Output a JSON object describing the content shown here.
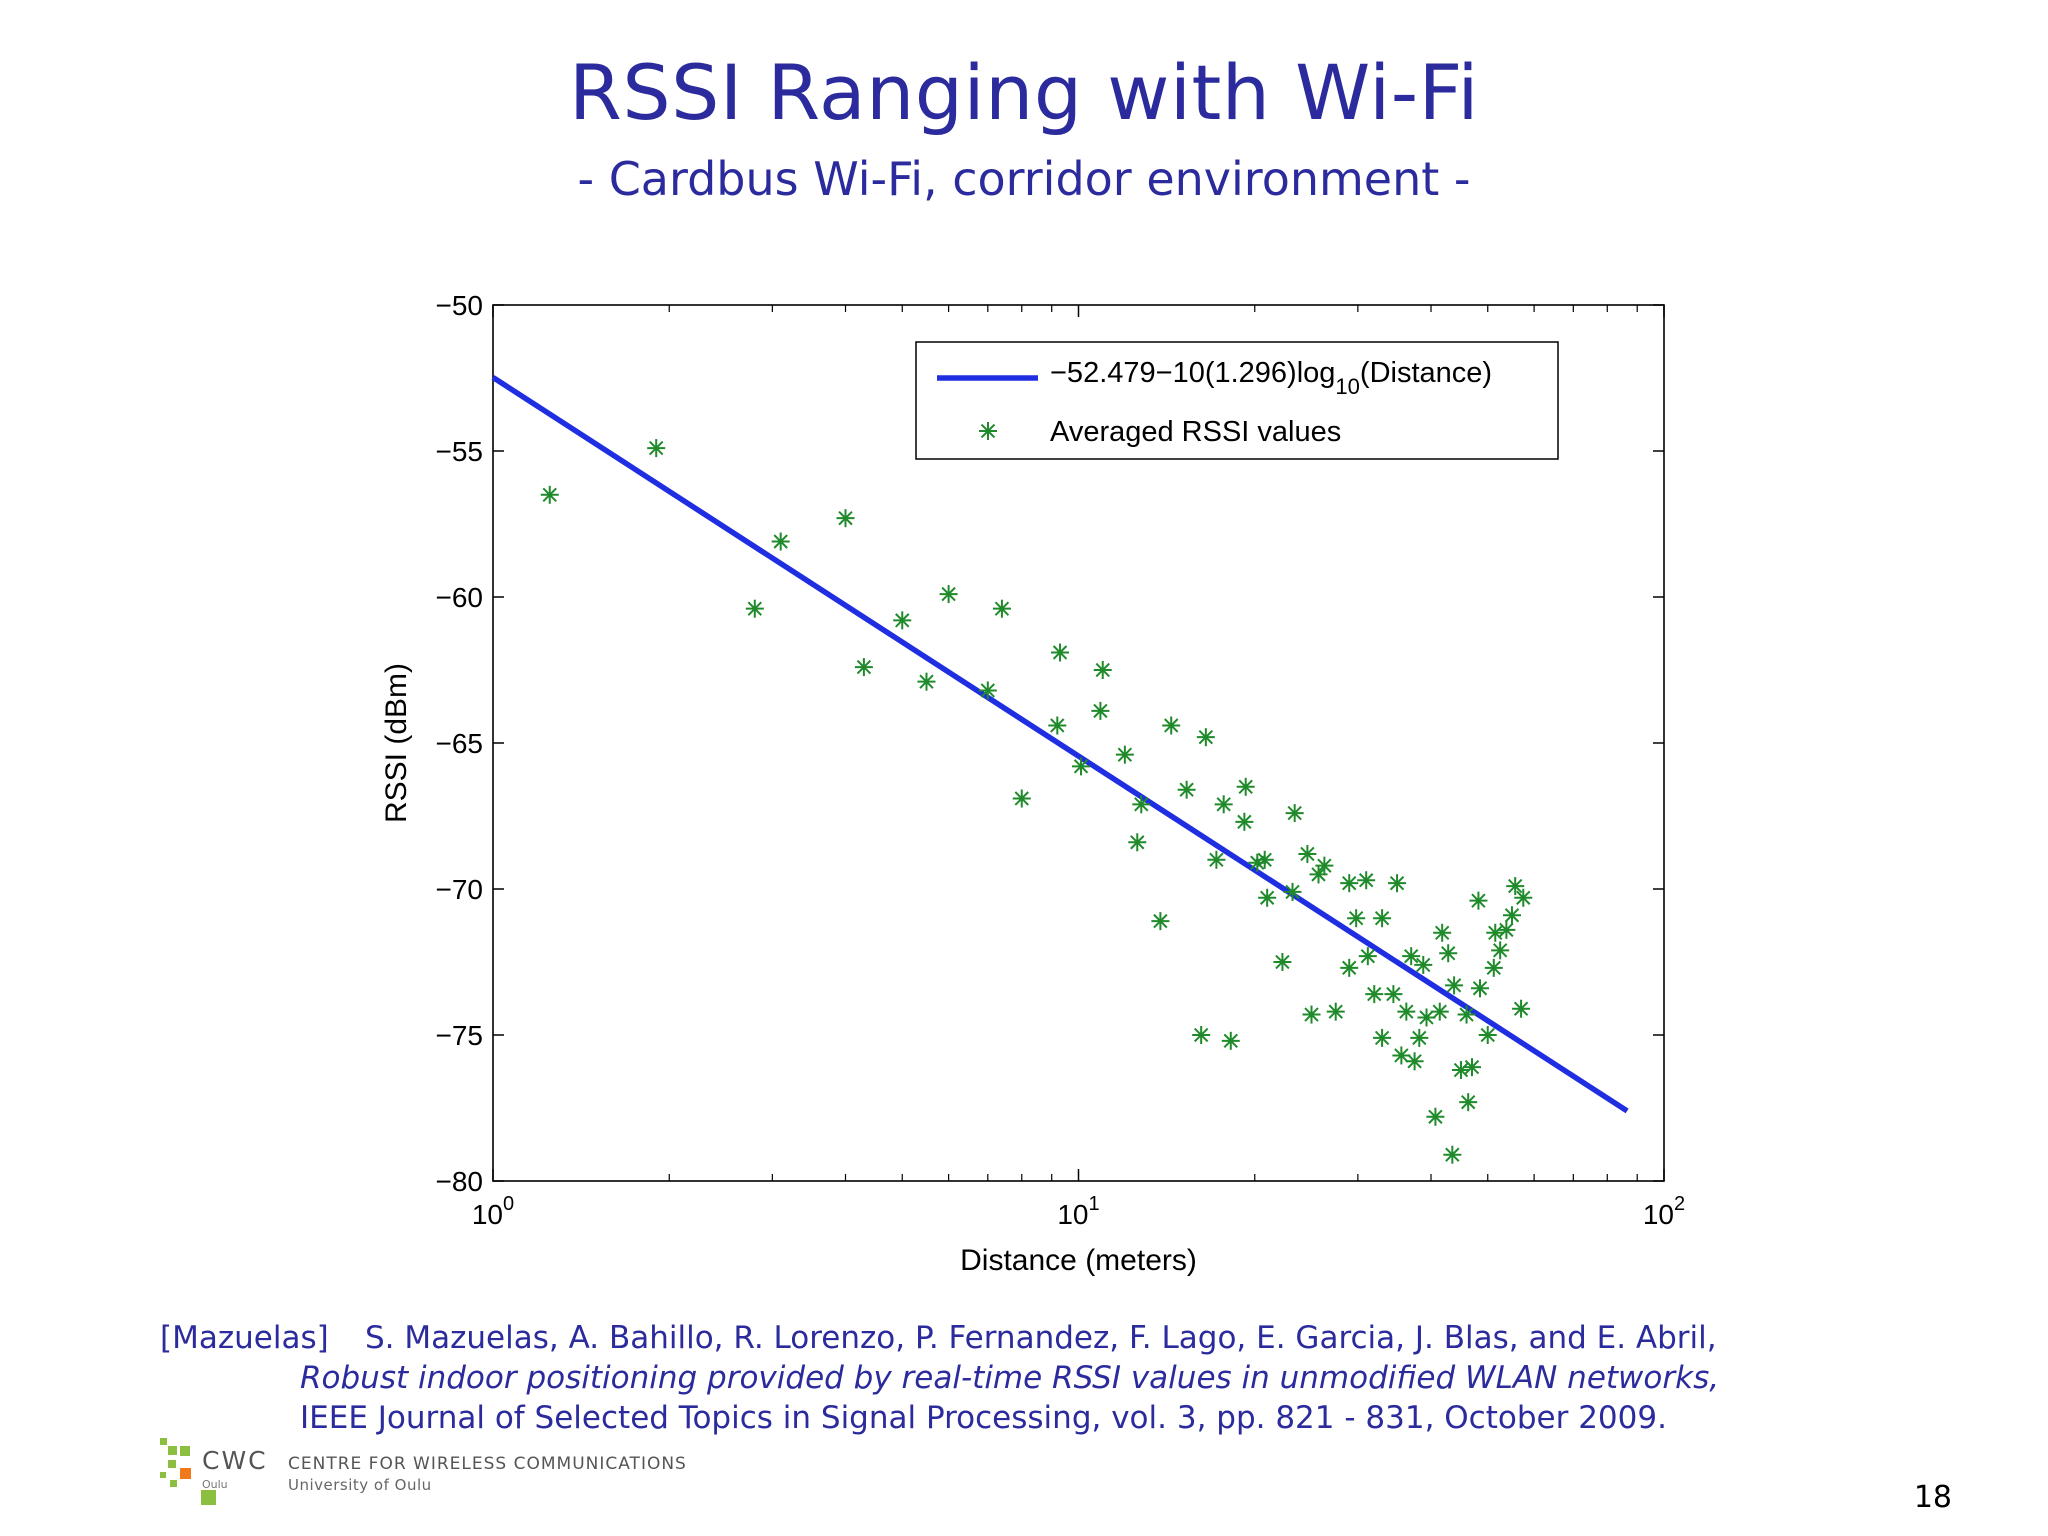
{
  "slide": {
    "title": "RSSI Ranging with Wi-Fi",
    "subtitle": "- Cardbus Wi-Fi, corridor environment -",
    "page_number": "18"
  },
  "reference": {
    "tag": "[Mazuelas]",
    "authors": "S. Mazuelas, A. Bahillo, R. Lorenzo, P. Fernandez, F. Lago, E. Garcia, J. Blas, and E. Abril,",
    "paper_title": "Robust indoor positioning provided by real-time RSSI values in unmodified WLAN networks,",
    "venue": "IEEE Journal of Selected Topics in Signal Processing, vol. 3, pp. 821 - 831, October 2009."
  },
  "logo": {
    "abbr": "CWC",
    "city": "Oulu",
    "centre": "CENTRE FOR WIRELESS COMMUNICATIONS",
    "university": "University of Oulu"
  },
  "chart_data": {
    "type": "scatter",
    "xlabel": "Distance (meters)",
    "ylabel": "RSSI (dBm)",
    "xscale": "log",
    "xlim": [
      1,
      100
    ],
    "ylim": [
      -80,
      -50
    ],
    "xticks": [
      1,
      10,
      100
    ],
    "xtick_labels": [
      {
        "base": "10",
        "exp": "0"
      },
      {
        "base": "10",
        "exp": "1"
      },
      {
        "base": "10",
        "exp": "2"
      }
    ],
    "yticks": [
      -80,
      -75,
      -70,
      -65,
      -60,
      -55,
      -50
    ],
    "ytick_labels": [
      "−80",
      "−75",
      "−70",
      "−65",
      "−60",
      "−55",
      "−50"
    ],
    "grid": false,
    "legend_position": "top-right",
    "series": [
      {
        "name": "−52.479−10(1.296)log10(Distance)",
        "legend_parts": {
          "before": "−52.479−10(1.296)log",
          "sub": "10",
          "after": "(Distance)"
        },
        "type": "line",
        "color": "#1f2ee0",
        "x": [
          1,
          86.5
        ],
        "y": [
          -52.48,
          -77.6
        ]
      },
      {
        "name": "Averaged RSSI values",
        "type": "scatter",
        "marker": "asterisk",
        "color": "#1f8a2a",
        "points": [
          [
            1.25,
            -56.5
          ],
          [
            1.9,
            -54.9
          ],
          [
            2.8,
            -60.4
          ],
          [
            3.1,
            -58.1
          ],
          [
            4.0,
            -57.3
          ],
          [
            4.3,
            -62.4
          ],
          [
            5.0,
            -60.8
          ],
          [
            5.5,
            -62.9
          ],
          [
            6.0,
            -59.9
          ],
          [
            7.0,
            -63.2
          ],
          [
            7.4,
            -60.4
          ],
          [
            8.0,
            -66.9
          ],
          [
            9.2,
            -64.4
          ],
          [
            9.3,
            -61.9
          ],
          [
            10.1,
            -65.8
          ],
          [
            10.9,
            -63.9
          ],
          [
            11.0,
            -62.5
          ],
          [
            12.0,
            -65.4
          ],
          [
            12.6,
            -68.4
          ],
          [
            12.8,
            -67.1
          ],
          [
            13.8,
            -71.1
          ],
          [
            14.4,
            -64.4
          ],
          [
            15.3,
            -66.6
          ],
          [
            16.2,
            -75.0
          ],
          [
            16.5,
            -64.8
          ],
          [
            17.2,
            -69.0
          ],
          [
            17.7,
            -67.1
          ],
          [
            18.2,
            -75.2
          ],
          [
            19.2,
            -67.7
          ],
          [
            19.3,
            -66.5
          ],
          [
            20.2,
            -69.1
          ],
          [
            20.8,
            -69.0
          ],
          [
            21.0,
            -70.3
          ],
          [
            22.3,
            -72.5
          ],
          [
            23.2,
            -70.1
          ],
          [
            23.4,
            -67.4
          ],
          [
            24.6,
            -68.8
          ],
          [
            25.0,
            -74.3
          ],
          [
            25.7,
            -69.5
          ],
          [
            26.3,
            -69.2
          ],
          [
            27.5,
            -74.2
          ],
          [
            29.0,
            -69.8
          ],
          [
            29.0,
            -72.7
          ],
          [
            29.8,
            -71.0
          ],
          [
            31.0,
            -69.7
          ],
          [
            31.2,
            -72.3
          ],
          [
            32.0,
            -73.6
          ],
          [
            33.0,
            -75.1
          ],
          [
            33.0,
            -71.0
          ],
          [
            34.5,
            -73.6
          ],
          [
            35.0,
            -69.8
          ],
          [
            35.6,
            -75.7
          ],
          [
            36.3,
            -74.2
          ],
          [
            37.0,
            -72.3
          ],
          [
            37.5,
            -75.9
          ],
          [
            38.2,
            -75.1
          ],
          [
            38.8,
            -72.6
          ],
          [
            39.3,
            -74.4
          ],
          [
            40.7,
            -77.8
          ],
          [
            41.4,
            -74.2
          ],
          [
            41.8,
            -71.5
          ],
          [
            42.8,
            -72.2
          ],
          [
            43.5,
            -79.1
          ],
          [
            43.8,
            -73.3
          ],
          [
            45.0,
            -76.2
          ],
          [
            46.0,
            -74.3
          ],
          [
            46.3,
            -77.3
          ],
          [
            47.0,
            -76.1
          ],
          [
            48.2,
            -70.4
          ],
          [
            48.5,
            -73.4
          ],
          [
            50.0,
            -75.0
          ],
          [
            51.2,
            -72.7
          ],
          [
            51.5,
            -71.5
          ],
          [
            52.5,
            -72.1
          ],
          [
            53.8,
            -71.4
          ],
          [
            55.0,
            -70.9
          ],
          [
            55.7,
            -69.9
          ],
          [
            57.0,
            -74.1
          ],
          [
            57.5,
            -70.3
          ]
        ]
      }
    ]
  }
}
